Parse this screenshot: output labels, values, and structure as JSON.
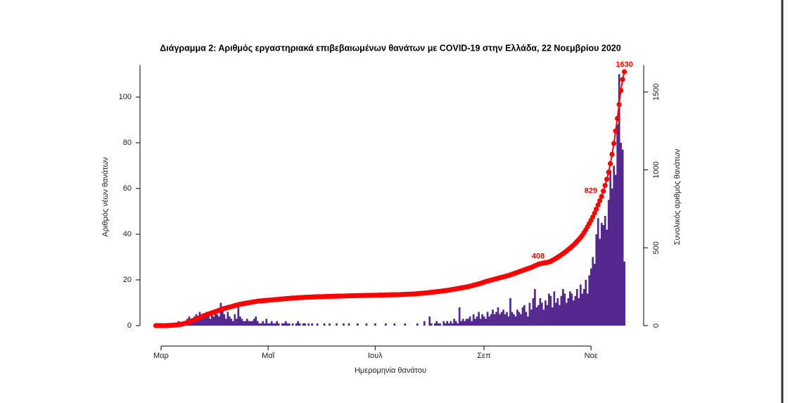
{
  "chart_data": {
    "type": "combo",
    "title": "Διάγραμμα 2: Αριθμός εργαστηριακά επιβεβαιωμένων θανάτων με COVID-19 στην Ελλάδα, 22 Νοεμβρίου 2020",
    "x_label": "Ημερομηνία θανάτου",
    "y_label": "Αριθμός νέων θανάτων",
    "y2_label": "Συνολικός αριθμός θανάτων",
    "xlim": [
      49,
      336
    ],
    "xticks": [
      {
        "value": 61,
        "label": "Μαρ"
      },
      {
        "value": 122,
        "label": "Μαΐ"
      },
      {
        "value": 183,
        "label": "Ιουλ"
      },
      {
        "value": 245,
        "label": "Σεπ"
      },
      {
        "value": 306,
        "label": "Νοε"
      }
    ],
    "ylim": [
      0,
      114
    ],
    "yticks": [
      0,
      20,
      40,
      60,
      80,
      100
    ],
    "y2lim": [
      0,
      1673
    ],
    "y2ticks": [
      0,
      500,
      1000,
      1500
    ],
    "x": [
      58,
      59,
      60,
      61,
      62,
      63,
      64,
      65,
      66,
      67,
      68,
      69,
      70,
      71,
      72,
      73,
      74,
      75,
      76,
      77,
      78,
      79,
      80,
      81,
      82,
      83,
      84,
      85,
      86,
      87,
      88,
      89,
      90,
      91,
      92,
      93,
      94,
      95,
      96,
      97,
      98,
      99,
      100,
      101,
      102,
      103,
      104,
      105,
      106,
      107,
      108,
      109,
      110,
      111,
      112,
      113,
      114,
      115,
      116,
      117,
      118,
      119,
      120,
      121,
      122,
      123,
      124,
      125,
      126,
      127,
      128,
      129,
      130,
      131,
      132,
      133,
      134,
      135,
      136,
      137,
      138,
      139,
      140,
      141,
      142,
      143,
      144,
      145,
      146,
      147,
      148,
      149,
      150,
      151,
      152,
      153,
      154,
      155,
      156,
      157,
      158,
      159,
      160,
      161,
      162,
      163,
      164,
      165,
      166,
      167,
      168,
      169,
      170,
      171,
      172,
      173,
      174,
      175,
      176,
      177,
      178,
      179,
      180,
      181,
      182,
      183,
      184,
      185,
      186,
      187,
      188,
      189,
      190,
      191,
      192,
      193,
      194,
      195,
      196,
      197,
      198,
      199,
      200,
      201,
      202,
      203,
      204,
      205,
      206,
      207,
      208,
      209,
      210,
      211,
      212,
      213,
      214,
      215,
      216,
      217,
      218,
      219,
      220,
      221,
      222,
      223,
      224,
      225,
      226,
      227,
      228,
      229,
      230,
      231,
      232,
      233,
      234,
      235,
      236,
      237,
      238,
      239,
      240,
      241,
      242,
      243,
      244,
      245,
      246,
      247,
      248,
      249,
      250,
      251,
      252,
      253,
      254,
      255,
      256,
      257,
      258,
      259,
      260,
      261,
      262,
      263,
      264,
      265,
      266,
      267,
      268,
      269,
      270,
      271,
      272,
      273,
      274,
      275,
      276,
      277,
      278,
      279,
      280,
      281,
      282,
      283,
      284,
      285,
      286,
      287,
      288,
      289,
      290,
      291,
      292,
      293,
      294,
      295,
      296,
      297,
      298,
      299,
      300,
      301,
      302,
      303,
      304,
      305,
      306,
      307,
      308,
      309,
      310,
      311,
      312,
      313,
      314,
      315,
      316,
      317,
      318,
      319,
      320,
      321,
      322,
      323,
      324,
      325
    ],
    "series": [
      {
        "type": "bar",
        "color": "#55288f",
        "values": [
          0,
          0,
          0,
          0,
          0,
          0,
          0,
          0,
          0,
          1,
          0,
          1,
          0,
          2,
          1,
          0,
          1,
          2,
          3,
          4,
          3,
          2,
          4,
          5,
          3,
          6,
          4,
          5,
          4,
          6,
          5,
          3,
          6,
          4,
          7,
          5,
          4,
          10,
          7,
          5,
          3,
          6,
          4,
          3,
          2,
          5,
          3,
          8,
          4,
          3,
          2,
          2,
          3,
          2,
          2,
          2,
          3,
          4,
          2,
          1,
          1,
          2,
          1,
          3,
          1,
          1,
          2,
          1,
          1,
          2,
          1,
          0,
          1,
          1,
          2,
          1,
          1,
          0,
          1,
          0,
          1,
          2,
          1,
          0,
          1,
          1,
          0,
          1,
          0,
          1,
          0,
          0,
          1,
          0,
          0,
          0,
          1,
          0,
          0,
          1,
          0,
          0,
          0,
          1,
          0,
          0,
          0,
          1,
          0,
          0,
          1,
          0,
          0,
          0,
          0,
          1,
          0,
          0,
          0,
          0,
          1,
          0,
          0,
          0,
          0,
          1,
          0,
          0,
          0,
          0,
          0,
          1,
          0,
          0,
          0,
          0,
          1,
          0,
          0,
          0,
          0,
          0,
          1,
          0,
          0,
          0,
          0,
          0,
          0,
          1,
          0,
          0,
          0,
          2,
          0,
          0,
          4,
          1,
          0,
          1,
          2,
          1,
          1,
          0,
          2,
          1,
          2,
          1,
          2,
          1,
          3,
          2,
          1,
          8,
          2,
          3,
          2,
          3,
          3,
          4,
          2,
          5,
          3,
          4,
          6,
          3,
          5,
          4,
          3,
          6,
          4,
          5,
          7,
          5,
          6,
          8,
          5,
          6,
          7,
          5,
          6,
          4,
          12,
          6,
          5,
          4,
          7,
          6,
          5,
          8,
          9,
          6,
          4,
          10,
          7,
          12,
          16,
          8,
          9,
          12,
          10,
          7,
          11,
          9,
          14,
          13,
          8,
          15,
          10,
          12,
          9,
          13,
          16,
          14,
          10,
          12,
          15,
          14,
          11,
          13,
          16,
          12,
          18,
          14,
          16,
          20,
          14,
          22,
          25,
          30,
          27,
          40,
          47,
          38,
          45,
          44,
          48,
          42,
          55,
          68,
          60,
          70,
          66,
          88,
          110,
          80,
          77,
          28
        ]
      },
      {
        "type": "line",
        "axis": "y2",
        "color": "#ff0000",
        "values": [
          0,
          0,
          0,
          0,
          0,
          0,
          0,
          1,
          1,
          2,
          3,
          4,
          5,
          6,
          8,
          10,
          13,
          16,
          20,
          24,
          28,
          32,
          37,
          42,
          47,
          52,
          57,
          62,
          66,
          70,
          74,
          78,
          82,
          86,
          90,
          94,
          98,
          102,
          106,
          110,
          113,
          116,
          119,
          122,
          125,
          128,
          131,
          134,
          137,
          139,
          141,
          143,
          145,
          147,
          149,
          151,
          153,
          155,
          157,
          158,
          159,
          160,
          161,
          162,
          163,
          164,
          165,
          166,
          167,
          168,
          169,
          170,
          171,
          172,
          173,
          174,
          175,
          176,
          177,
          177,
          178,
          179,
          180,
          180,
          181,
          182,
          182,
          183,
          183,
          184,
          184,
          185,
          185,
          186,
          186,
          186,
          187,
          187,
          187,
          188,
          188,
          188,
          189,
          189,
          189,
          190,
          190,
          190,
          191,
          191,
          191,
          192,
          192,
          192,
          192,
          193,
          193,
          193,
          193,
          194,
          194,
          194,
          194,
          195,
          195,
          195,
          195,
          196,
          196,
          196,
          196,
          197,
          197,
          197,
          198,
          198,
          198,
          199,
          199,
          199,
          200,
          200,
          201,
          201,
          202,
          202,
          203,
          203,
          204,
          205,
          206,
          207,
          208,
          209,
          210,
          211,
          213,
          214,
          215,
          216,
          218,
          219,
          220,
          222,
          223,
          225,
          226,
          228,
          230,
          232,
          234,
          236,
          238,
          240,
          242,
          244,
          246,
          248,
          250,
          253,
          256,
          259,
          262,
          265,
          268,
          271,
          275,
          279,
          283,
          286,
          289,
          292,
          295,
          298,
          301,
          304,
          307,
          310,
          313,
          316,
          319,
          322,
          326,
          330,
          334,
          338,
          342,
          346,
          350,
          354,
          358,
          362,
          366,
          370,
          374,
          379,
          384,
          389,
          394,
          397,
          400,
          402,
          404,
          406,
          408,
          413,
          419,
          425,
          432,
          439,
          446,
          454,
          462,
          470,
          479,
          488,
          497,
          507,
          517,
          528,
          540,
          552,
          565,
          580,
          597,
          615,
          635,
          655,
          676,
          698,
          722,
          748,
          775,
          802,
          829,
          864,
          900,
          940,
          985,
          1040,
          1100,
          1170,
          1250,
          1330,
          1420,
          1510,
          1580,
          1630
        ]
      }
    ],
    "annotations": [
      {
        "x": 282,
        "y": 408
      },
      {
        "x": 312,
        "y": 829
      },
      {
        "x": 325,
        "y": 1630
      }
    ]
  }
}
